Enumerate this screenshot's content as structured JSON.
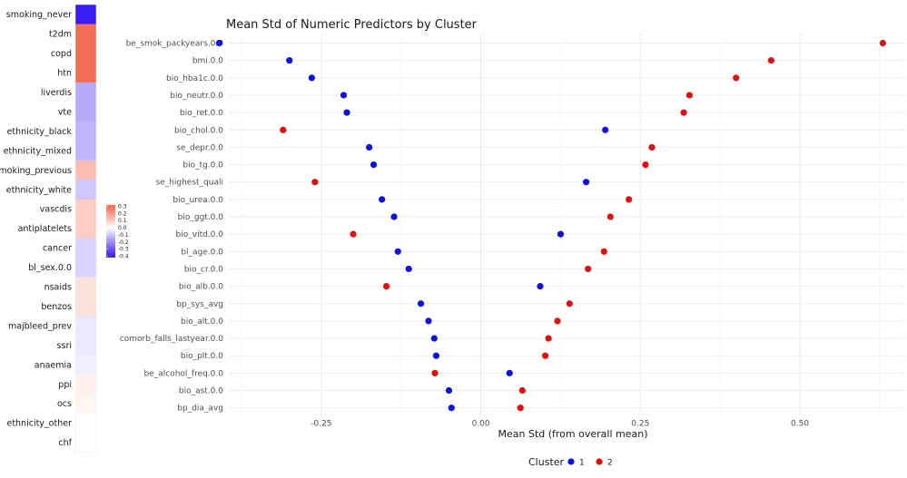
{
  "colors": {
    "cluster1": "#1010e0",
    "cluster2": "#e01010",
    "heat_low": "#3b1cf5",
    "heat_mid": "#ffffff",
    "heat_high": "#f26a4f"
  },
  "chart_data": [
    {
      "type": "heatmap",
      "title": "",
      "rows": [
        "smoking_never",
        "t2dm",
        "copd",
        "htn",
        "liverdis",
        "vte",
        "ethnicity_black",
        "ethnicity_mixed",
        "smoking_previous",
        "ethnicity_white",
        "vascdis",
        "antiplatelets",
        "cancer",
        "bl_sex.0.0",
        "nsaids",
        "benzos",
        "majbleed_prev",
        "ssri",
        "anaemia",
        "ppi",
        "ocs",
        "ethnicity_other",
        "chf"
      ],
      "values": [
        -0.4,
        0.29,
        0.29,
        0.29,
        -0.15,
        -0.15,
        -0.13,
        -0.13,
        0.13,
        -0.1,
        0.1,
        0.1,
        -0.08,
        -0.08,
        0.06,
        0.06,
        -0.04,
        -0.04,
        -0.03,
        0.03,
        0.02,
        0.0,
        0.0
      ],
      "colorbar": {
        "ticks": [
          "0.3",
          "0.2",
          "0.1",
          "0.0",
          "-0.1",
          "-0.2",
          "-0.3",
          "-0.4"
        ],
        "tick_values": [
          0.3,
          0.2,
          0.1,
          0.0,
          -0.1,
          -0.2,
          -0.3,
          -0.4
        ],
        "range": [
          -0.42,
          0.32
        ]
      }
    },
    {
      "type": "scatter",
      "title": "Mean Std of Numeric Predictors by Cluster",
      "xlabel": "Mean Std (from overall mean)",
      "ylabel": "",
      "xlim": [
        -0.395,
        0.665
      ],
      "xticks": [
        "-0.25",
        "0.00",
        "0.25",
        "0.50"
      ],
      "xtick_values": [
        -0.25,
        0.0,
        0.25,
        0.5
      ],
      "categories": [
        "be_smok_packyears.0.0",
        "bmi.0.0",
        "bio_hba1c.0.0",
        "bio_neutr.0.0",
        "bio_ret.0.0",
        "bio_chol.0.0",
        "se_depr.0.0",
        "bio_tg.0.0",
        "se_highest_quali",
        "bio_urea.0.0",
        "bio_ggt.0.0",
        "bio_vitd.0.0",
        "bl_age.0.0",
        "bio_cr.0.0",
        "bio_alb.0.0",
        "bp_sys_avg",
        "bio_alt.0.0",
        "comorb_falls_lastyear.0.0",
        "bio_plt.0.0",
        "be_alcohol_freq.0.0",
        "bio_ast.0.0",
        "bp_dia_avg"
      ],
      "series": [
        {
          "name": "1",
          "values": [
            -0.41,
            -0.3,
            -0.265,
            -0.215,
            -0.21,
            0.195,
            -0.175,
            -0.168,
            0.165,
            -0.155,
            -0.136,
            0.125,
            -0.13,
            -0.113,
            0.093,
            -0.094,
            -0.082,
            -0.073,
            -0.07,
            0.045,
            -0.05,
            -0.046
          ]
        },
        {
          "name": "2",
          "values": [
            0.63,
            0.455,
            0.4,
            0.327,
            0.318,
            -0.31,
            0.268,
            0.258,
            -0.26,
            0.232,
            0.203,
            -0.2,
            0.193,
            0.168,
            -0.148,
            0.139,
            0.12,
            0.106,
            0.101,
            -0.072,
            0.065,
            0.062
          ]
        }
      ],
      "legend": {
        "title": "Cluster",
        "position": "bottom",
        "items": [
          "1",
          "2"
        ]
      },
      "grid": true
    }
  ]
}
